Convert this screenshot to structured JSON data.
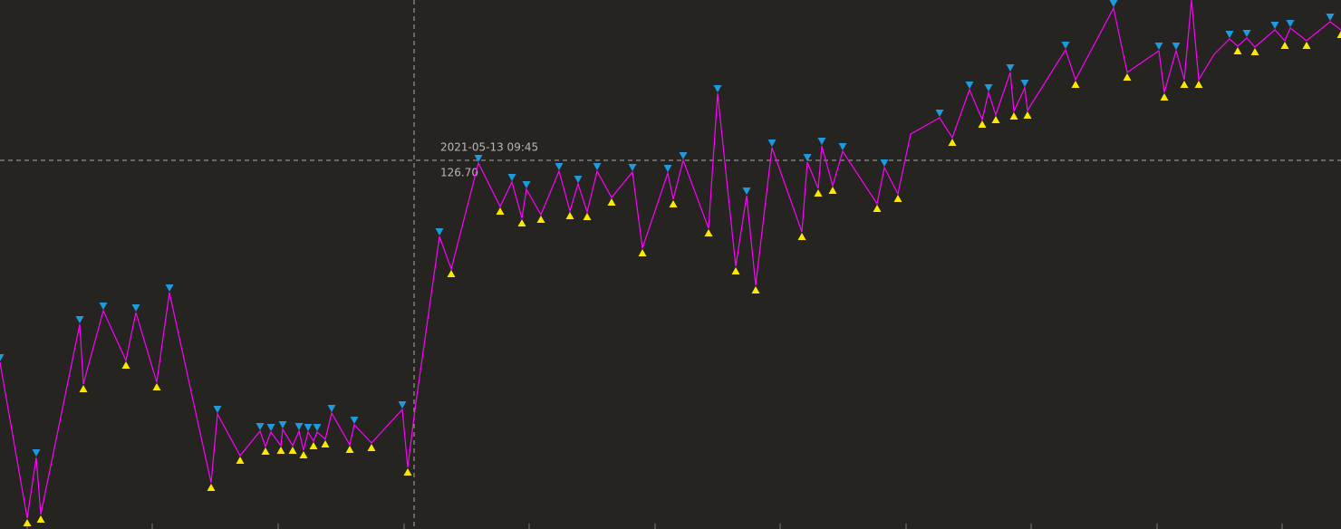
{
  "chart_data": {
    "type": "line",
    "background": "#262420",
    "line_color": "#ff00ff",
    "high_color": "#1e9be0",
    "low_color": "#ffe800",
    "xlim": [
      0,
      1480
    ],
    "ylim": [
      86.0,
      144.4
    ],
    "x": [
      0,
      30,
      40,
      45,
      88,
      92,
      114,
      139,
      150,
      173,
      187,
      233,
      240,
      265,
      287,
      293,
      299,
      310,
      312,
      323,
      330,
      335,
      340,
      346,
      350,
      359,
      366,
      386,
      391,
      410,
      444,
      450,
      458,
      485,
      498,
      528,
      552,
      565,
      576,
      581,
      597,
      617,
      629,
      638,
      648,
      659,
      675,
      698,
      709,
      737,
      743,
      754,
      782,
      792,
      812,
      824,
      834,
      852,
      885,
      891,
      903,
      907,
      919,
      930,
      968,
      976,
      991,
      1005,
      1037,
      1051,
      1070,
      1084,
      1091,
      1099,
      1115,
      1119,
      1131,
      1134,
      1176,
      1187,
      1229,
      1244,
      1279,
      1285,
      1298,
      1307,
      1315,
      1323,
      1340,
      1357,
      1366,
      1376,
      1385,
      1407,
      1418,
      1424,
      1442,
      1468,
      1480
    ],
    "values": [
      104.4,
      87.2,
      93.9,
      87.6,
      108.6,
      102.0,
      110.1,
      104.6,
      109.9,
      102.2,
      112.1,
      91.1,
      98.7,
      94.1,
      96.8,
      95.1,
      96.7,
      95.2,
      97.0,
      95.2,
      96.8,
      94.7,
      96.7,
      95.7,
      96.7,
      95.9,
      98.8,
      95.3,
      97.5,
      95.5,
      99.2,
      92.8,
      99.2,
      118.3,
      114.7,
      126.4,
      121.6,
      124.3,
      120.3,
      123.5,
      120.7,
      125.5,
      121.1,
      124.1,
      121.0,
      125.5,
      122.6,
      125.4,
      117.0,
      125.3,
      122.4,
      126.7,
      119.2,
      134.1,
      115.0,
      122.8,
      112.9,
      128.1,
      118.8,
      126.5,
      123.6,
      128.3,
      123.9,
      127.7,
      121.9,
      125.9,
      123.0,
      129.6,
      131.4,
      129.2,
      134.5,
      131.2,
      134.2,
      131.7,
      136.4,
      132.1,
      134.7,
      132.2,
      138.9,
      135.6,
      143.5,
      136.4,
      138.8,
      134.2,
      138.8,
      135.6,
      144.4,
      135.6,
      138.4,
      140.1,
      139.3,
      140.2,
      139.2,
      141.1,
      139.9,
      141.3,
      139.9,
      142.0,
      141.1
    ],
    "crosshair": {
      "x": {
        "value": 457,
        "label": "2021-05-13 09:45"
      },
      "y": {
        "value": 126.7,
        "label": "126.70"
      }
    }
  }
}
